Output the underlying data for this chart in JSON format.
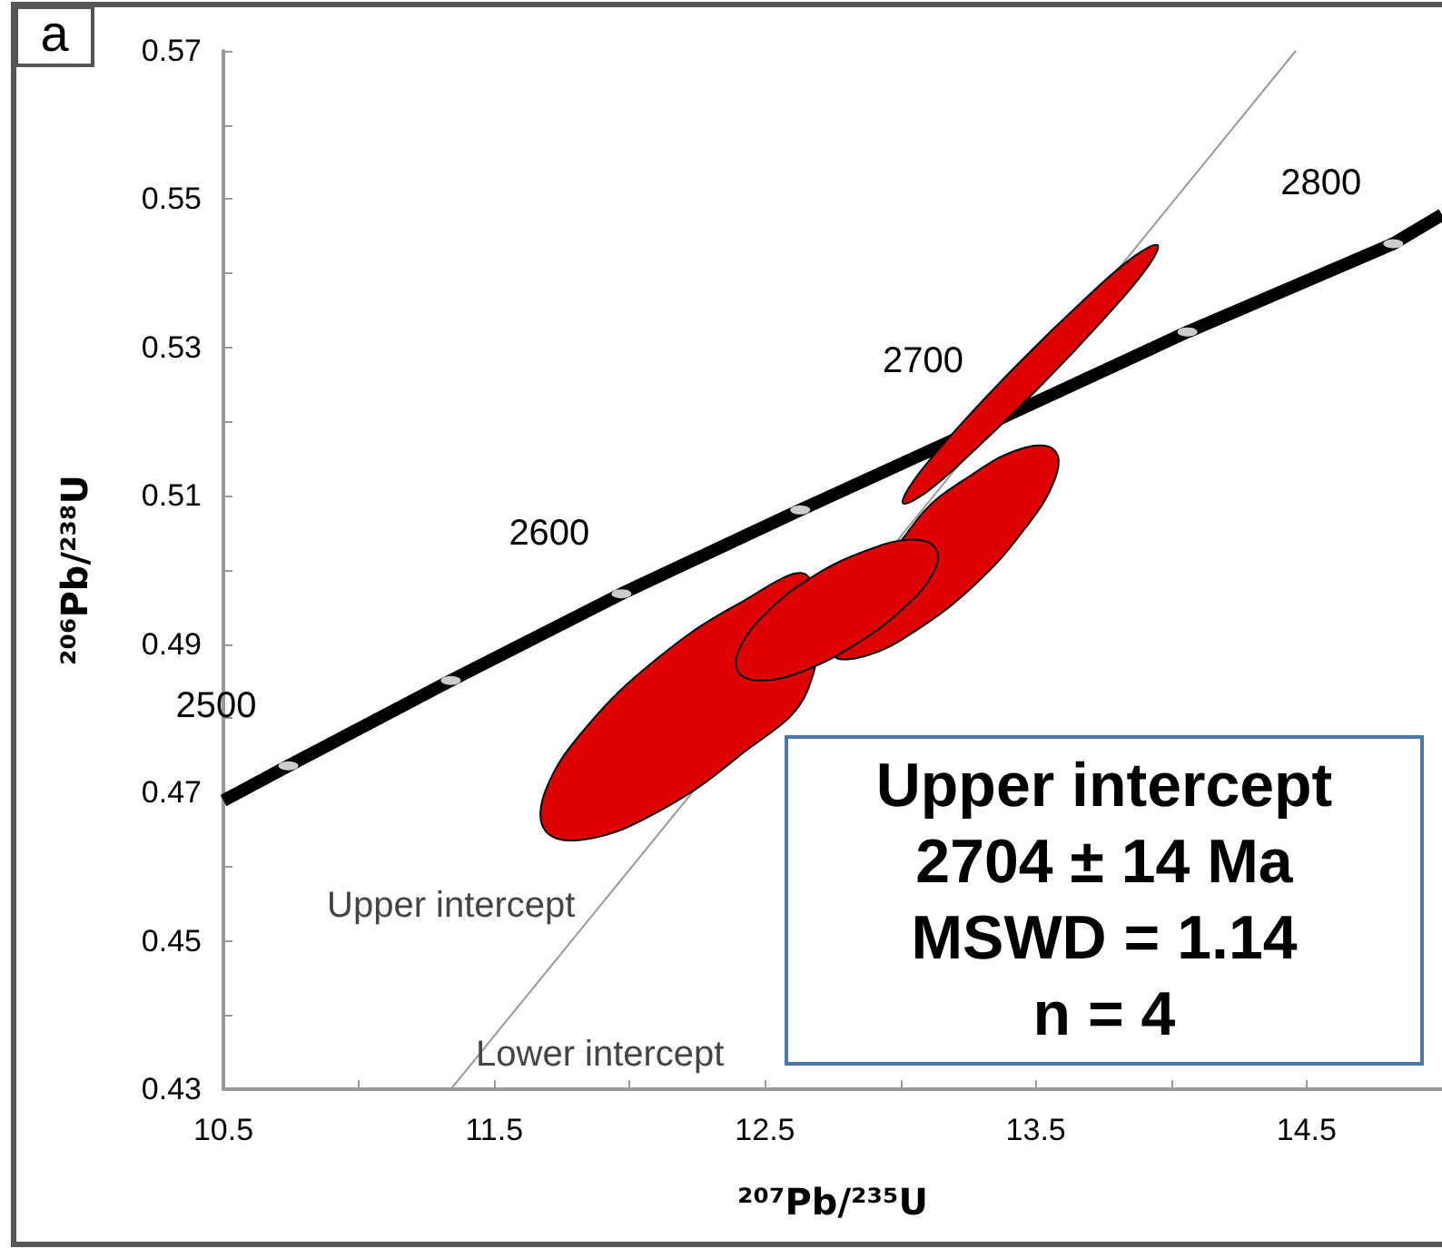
{
  "chart_data": {
    "type": "line",
    "xlabel": "²⁰⁷Pb/²³⁵U",
    "ylabel": "²⁰⁶Pb/²³⁸U",
    "xlim": [
      10.5,
      15.0
    ],
    "ylim": [
      0.43,
      0.57
    ],
    "xticks": [
      10.5,
      {
        "value": 11,
        "label": null
      },
      11.5,
      {
        "value": 12,
        "label": null
      },
      12.5,
      {
        "value": 13,
        "label": null
      },
      13.5,
      {
        "value": 14,
        "label": null
      },
      14.5
    ],
    "yticks": [
      0.43,
      {
        "value": 0.44,
        "label": null
      },
      0.45,
      {
        "value": 0.46,
        "label": null
      },
      0.47,
      {
        "value": 0.48,
        "label": null
      },
      0.49,
      {
        "value": 0.5,
        "label": null
      },
      0.51,
      {
        "value": 0.52,
        "label": null
      },
      0.53,
      {
        "value": 0.54,
        "label": null
      },
      0.55,
      {
        "value": 0.56,
        "label": null
      },
      0.57
    ],
    "grid": false,
    "series": [
      {
        "color": "#999999",
        "marker": "none",
        "x": [
          11.34,
          14.46
        ],
        "values": [
          0.43,
          0.57
        ]
      },
      {
        "color": "#000000",
        "marker": "none",
        "x": [
          10.5,
          10.74,
          11.34,
          11.97,
          12.63,
          13.35,
          14.06,
          14.82,
          15.0
        ],
        "values": [
          0.4689,
          0.4736,
          0.4851,
          0.4968,
          0.5081,
          0.5201,
          0.5321,
          0.544,
          0.5479
        ]
      },
      {
        "type": "scatter",
        "color": "#ffffff",
        "marker": "circle",
        "x": [
          10.74,
          11.34,
          11.97,
          12.63,
          14.06,
          14.82
        ],
        "values": [
          0.4736,
          0.4851,
          0.4968,
          0.5081,
          0.5321,
          0.544
        ]
      },
      {
        "type": "area",
        "color": "#dd0000",
        "x": [
          12.66,
          12.4,
          12.1,
          11.84,
          11.69,
          11.69,
          11.84,
          12.1,
          12.4,
          12.66
        ],
        "values": [
          0.484,
          0.4748,
          0.4673,
          0.4637,
          0.4648,
          0.4703,
          0.4788,
          0.488,
          0.4954,
          0.4991
        ]
      },
      {
        "type": "area",
        "color": "#dd0000",
        "x": [
          13.57,
          13.57,
          13.46,
          13.28,
          13.06,
          12.87,
          12.76,
          13.06,
          13.27,
          13.46
        ],
        "values": [
          0.5161,
          0.5122,
          0.5056,
          0.4982,
          0.4919,
          0.4884,
          0.4887,
          0.5067,
          0.513,
          0.5165
        ]
      },
      {
        "type": "area",
        "color": "#dd0000",
        "x": [
          13.13,
          13.12,
          13.01,
          12.84,
          12.65,
          12.49,
          12.4,
          12.41,
          12.51,
          12.68,
          12.88,
          13.04
        ],
        "values": [
          0.5029,
          0.4995,
          0.4948,
          0.4901,
          0.4865,
          0.4851,
          0.4863,
          0.4897,
          0.4944,
          0.4992,
          0.5027,
          0.5041
        ]
      },
      {
        "type": "area",
        "color": "#dd0000",
        "x": [
          13.95,
          13.91,
          13.75,
          13.52,
          13.28,
          13.1,
          13.01,
          13.05,
          13.21,
          13.44,
          13.68,
          13.86
        ],
        "values": [
          0.5438,
          0.5407,
          0.5338,
          0.5249,
          0.5164,
          0.5106,
          0.509,
          0.5121,
          0.5191,
          0.528,
          0.5365,
          0.5422
        ]
      }
    ],
    "annotations": [
      "a",
      "Upper intercept",
      "Lower intercept",
      "Upper intercept",
      "2704 ± 14 Ma",
      "MSWD = 1.14",
      "n = 4",
      {
        "text": "2500",
        "x": 10.74,
        "y": 0.4736
      },
      {
        "text": "2600",
        "x": 11.97,
        "y": 0.4968
      },
      {
        "text": "2700",
        "x": 13.35,
        "y": 0.5201
      },
      {
        "text": "2800",
        "x": 14.82,
        "y": 0.544
      }
    ]
  }
}
